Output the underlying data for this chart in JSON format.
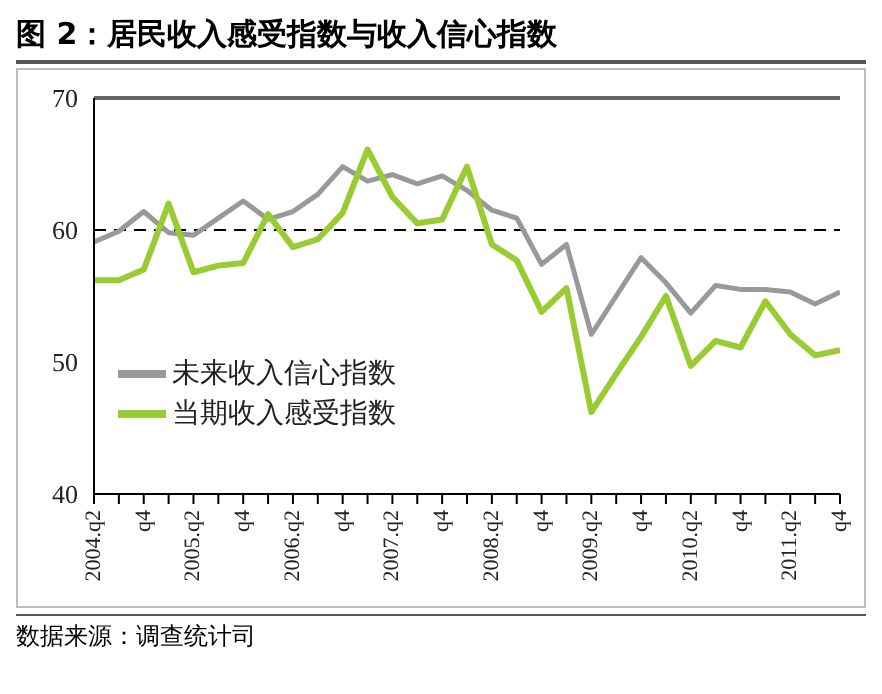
{
  "chart_data": {
    "type": "line",
    "title": "图 2：居民收入感受指数与收入信心指数",
    "categories": [
      "2004.q2",
      null,
      "q4",
      null,
      "2005.q2",
      null,
      "q4",
      null,
      "2006.q2",
      null,
      "q4",
      null,
      "2007.q2",
      null,
      "q4",
      null,
      "2008.q2",
      null,
      "q4",
      null,
      "2009.q2",
      null,
      "q4",
      null,
      "2010.q2",
      null,
      "q4",
      null,
      "2011.q2",
      null,
      "q4"
    ],
    "series": [
      {
        "name": "未来收入信心指数",
        "color": "#999999",
        "values": [
          59.1,
          59.9,
          61.4,
          59.8,
          59.6,
          60.9,
          62.2,
          60.8,
          61.4,
          62.7,
          64.8,
          63.7,
          64.2,
          63.5,
          64.1,
          63.0,
          61.5,
          60.9,
          57.4,
          58.9,
          52.1,
          55.0,
          57.9,
          56.0,
          53.7,
          55.8,
          55.5,
          55.5,
          55.3,
          54.4,
          55.3
        ]
      },
      {
        "name": "当期收入感受指数",
        "color": "#99cc33",
        "values": [
          56.2,
          56.2,
          57.0,
          62.0,
          56.8,
          57.3,
          57.5,
          61.2,
          58.7,
          59.3,
          61.3,
          66.1,
          62.5,
          60.5,
          60.8,
          64.8,
          58.9,
          57.7,
          53.8,
          55.6,
          46.2,
          49.1,
          51.9,
          55.0,
          49.7,
          51.6,
          51.1,
          54.6,
          52.1,
          50.5,
          50.9
        ]
      }
    ],
    "ylim": [
      40,
      70
    ],
    "yticks": [
      40,
      50,
      60,
      70
    ],
    "ref_lines": [
      {
        "axis": "y",
        "value": 60,
        "color": "#000000",
        "line_style": "dashed"
      }
    ],
    "legend": "left",
    "marker": "none",
    "line_style": "solid",
    "annotations": [
      "数据来源：调查统计司"
    ]
  }
}
